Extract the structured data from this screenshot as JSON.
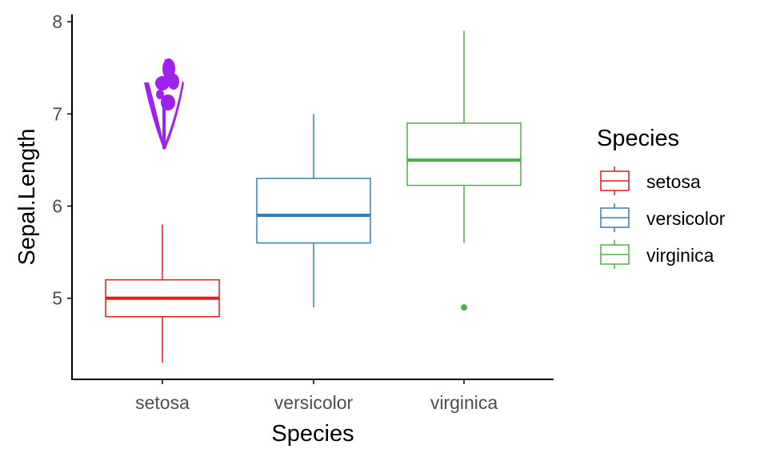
{
  "chart_data": {
    "type": "boxplot",
    "xlabel": "Species",
    "ylabel": "Sepal.Length",
    "categories": [
      "setosa",
      "versicolor",
      "virginica"
    ],
    "ylim": [
      4.12,
      8.08
    ],
    "yticks": [
      "5",
      "6",
      "7",
      "8"
    ],
    "grid": false,
    "legend_position": "right",
    "legend_title": "Species",
    "series": [
      {
        "name": "setosa",
        "color": "#E41A1C",
        "min": 4.3,
        "q1": 4.8,
        "median": 5.0,
        "q3": 5.2,
        "max": 5.8,
        "outliers": []
      },
      {
        "name": "versicolor",
        "color": "#377EB8",
        "min": 4.9,
        "q1": 5.6,
        "median": 5.9,
        "q3": 6.3,
        "max": 7.0,
        "outliers": []
      },
      {
        "name": "virginica",
        "color": "#4DAF4A",
        "min": 5.6,
        "q1": 6.225,
        "median": 6.5,
        "q3": 6.9,
        "max": 7.9,
        "outliers": [
          4.9
        ]
      }
    ],
    "annotation_image": {
      "type": "iris-flower-icon",
      "color": "#A020F0"
    }
  }
}
